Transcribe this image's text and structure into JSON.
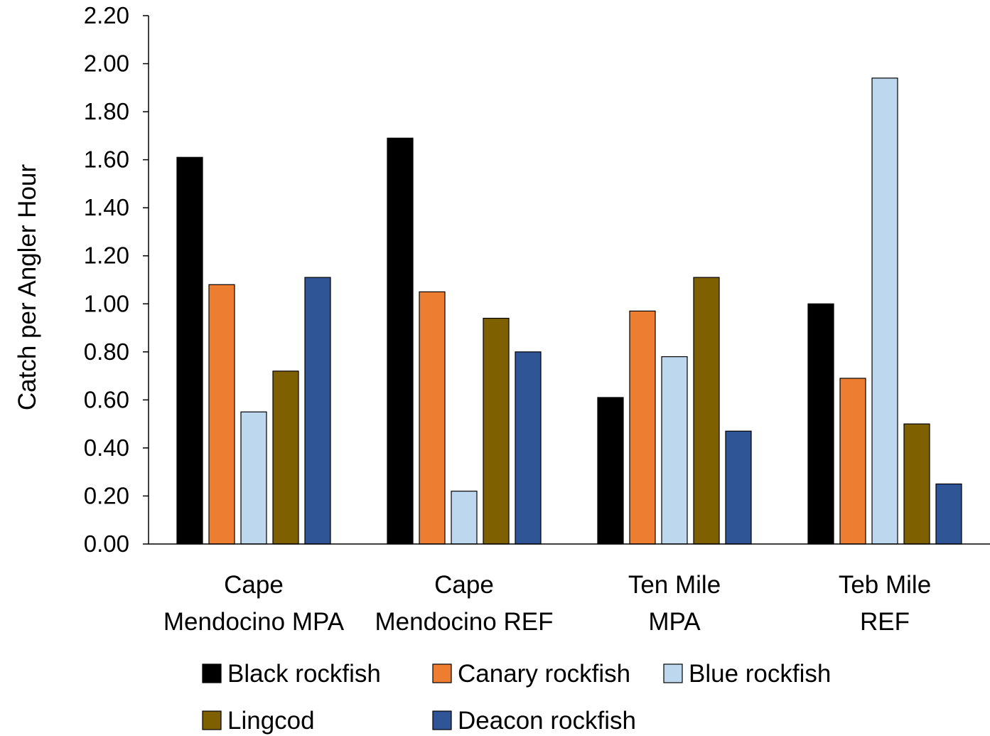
{
  "chart_data": {
    "type": "bar",
    "title": "",
    "xlabel": "",
    "ylabel": "Catch per Angler Hour",
    "ylim": [
      0,
      2.2
    ],
    "yticks": [
      "0.00",
      "0.20",
      "0.40",
      "0.60",
      "0.80",
      "1.00",
      "1.20",
      "1.40",
      "1.60",
      "1.80",
      "2.00",
      "2.20"
    ],
    "categories": [
      [
        "Cape",
        "Mendocino MPA"
      ],
      [
        "Cape",
        "Mendocino REF"
      ],
      [
        "Ten Mile",
        "MPA"
      ],
      [
        "Teb Mile",
        "REF"
      ]
    ],
    "series": [
      {
        "name": "Black rockfish",
        "color": "#000000",
        "values": [
          1.61,
          1.69,
          0.61,
          1.0
        ]
      },
      {
        "name": "Canary rockfish",
        "color": "#ED7D31",
        "values": [
          1.08,
          1.05,
          0.97,
          0.69
        ]
      },
      {
        "name": "Blue rockfish",
        "color": "#BDD7EE",
        "values": [
          0.55,
          0.22,
          0.78,
          1.94
        ]
      },
      {
        "name": "Lingcod",
        "color": "#7F6000",
        "values": [
          0.72,
          0.94,
          1.11,
          0.5
        ]
      },
      {
        "name": "Deacon rockfish",
        "color": "#2F5597",
        "values": [
          1.11,
          0.8,
          0.47,
          0.25
        ]
      }
    ],
    "grid": false,
    "legend_position": "bottom"
  }
}
